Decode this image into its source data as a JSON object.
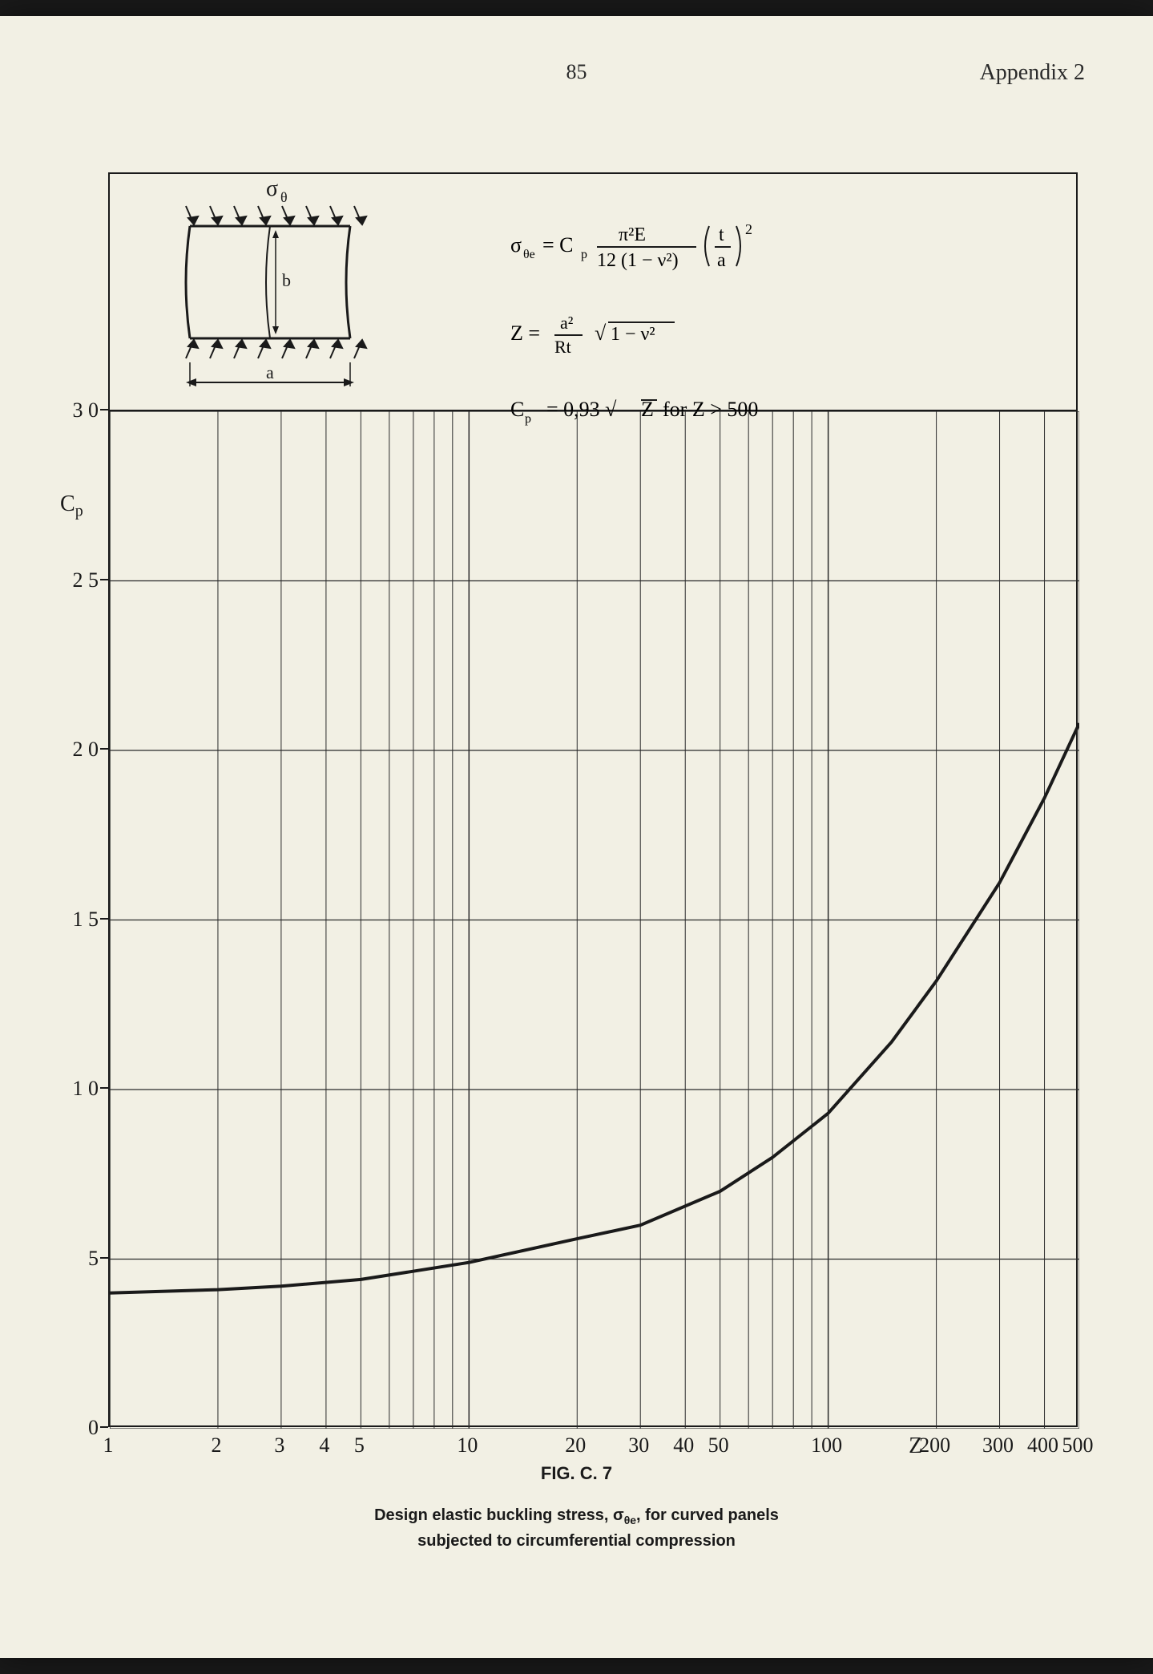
{
  "page_number": "85",
  "appendix_label": "Appendix 2",
  "diagram": {
    "sigma_label": "σ",
    "sigma_sub": "θ",
    "dim_a": "a",
    "dim_b": "b"
  },
  "formulas": {
    "f1_lhs": "σ",
    "f1_lhs_sub": "θe",
    "f1_eq": " = C",
    "f1_cp_sub": "p",
    "f1_frac_top": "π²E",
    "f1_frac_bot": "12 (1 − ν²)",
    "f1_paren_top": "t",
    "f1_paren_bot": "a",
    "f1_exp": "2",
    "f2_lhs": "Z = ",
    "f2_frac_top": "a²",
    "f2_frac_bot": "Rt",
    "f2_sqrt": "1 − ν²",
    "f3": "C",
    "f3_sub": "p",
    "f3_rest": "  =  0,93 √Z for Z > 500"
  },
  "chart": {
    "type": "line-logx",
    "y_label": "C",
    "y_label_sub": "p",
    "x_label": "Z",
    "x_ticks": [
      1,
      2,
      3,
      4,
      5,
      10,
      20,
      30,
      40,
      50,
      100,
      200,
      300,
      400,
      500
    ],
    "x_tick_labels": [
      "1",
      "2",
      "3",
      "4",
      "5",
      "10",
      "20",
      "30",
      "40",
      "50",
      "100",
      "200",
      "300",
      "400",
      "500"
    ],
    "y_ticks": [
      0,
      5,
      10,
      15,
      20,
      25,
      30
    ],
    "y_tick_labels": [
      "0",
      "5",
      "1 0",
      "1 5",
      "2 0",
      "2 5",
      "3 0"
    ],
    "xlim": [
      1,
      500
    ],
    "ylim": [
      0,
      30
    ],
    "curve_points": [
      {
        "x": 1,
        "y": 4.0
      },
      {
        "x": 2,
        "y": 4.1
      },
      {
        "x": 3,
        "y": 4.2
      },
      {
        "x": 5,
        "y": 4.4
      },
      {
        "x": 10,
        "y": 4.9
      },
      {
        "x": 20,
        "y": 5.6
      },
      {
        "x": 30,
        "y": 6.0
      },
      {
        "x": 50,
        "y": 7.0
      },
      {
        "x": 70,
        "y": 8.0
      },
      {
        "x": 100,
        "y": 9.3
      },
      {
        "x": 150,
        "y": 11.4
      },
      {
        "x": 200,
        "y": 13.2
      },
      {
        "x": 300,
        "y": 16.1
      },
      {
        "x": 400,
        "y": 18.6
      },
      {
        "x": 500,
        "y": 20.8
      }
    ],
    "grid_color": "#2a2a2a",
    "curve_color": "#1a1a1a",
    "curve_width": 4,
    "background_color": "#f2f0e4"
  },
  "caption": {
    "fig_num": "FIG. C. 7",
    "title_line1": "Design elastic buckling stress, σ",
    "title_sub": "θe",
    "title_line1b": ", for curved panels",
    "title_line2": "subjected to circumferential compression"
  }
}
